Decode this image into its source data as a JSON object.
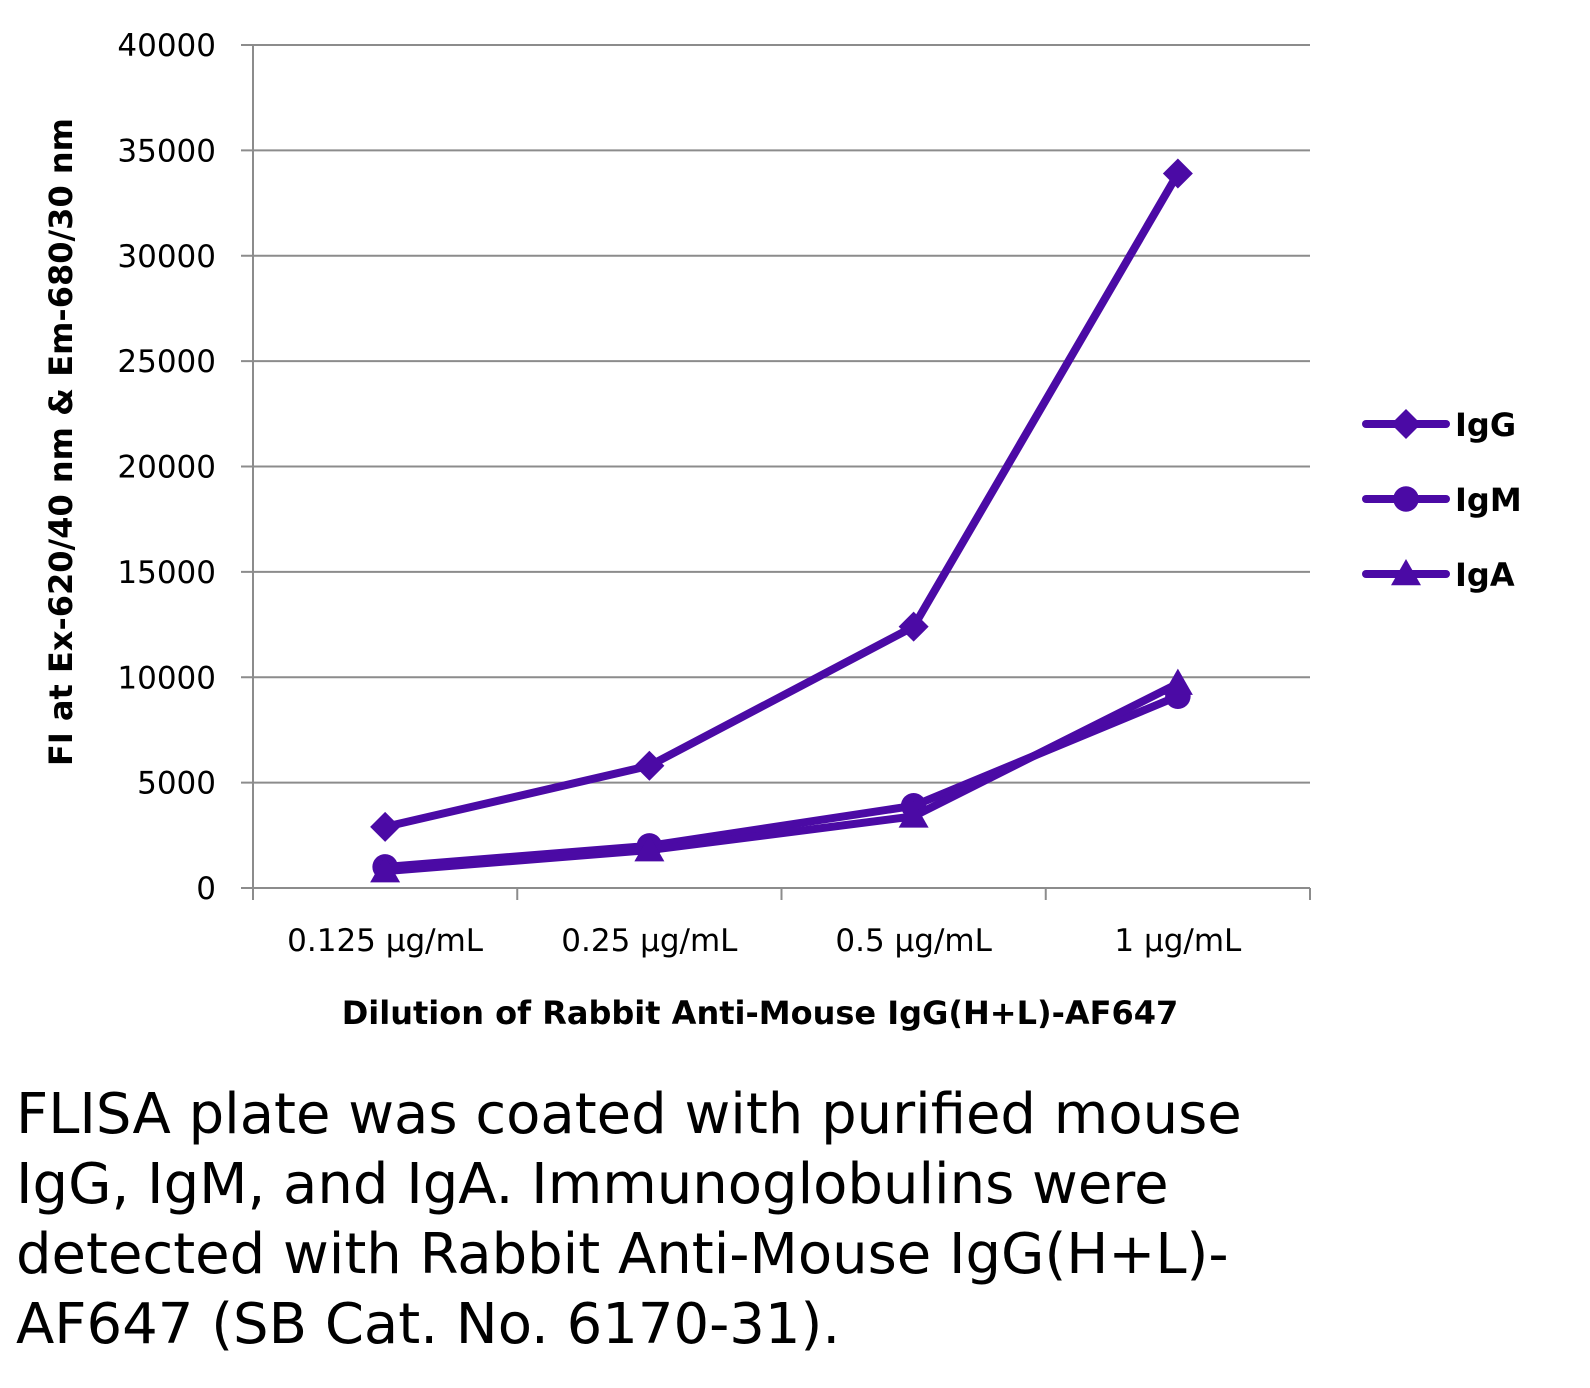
{
  "chart_data": {
    "type": "line",
    "xlabel": "Dilution of Rabbit Anti-Mouse IgG(H+L)-AF647",
    "ylabel": "FI at Ex-620/40 nm & Em-680/30 nm",
    "categories": [
      "0.125 µg/mL",
      "0.25 µg/mL",
      "0.5 µg/mL",
      "1 µg/mL"
    ],
    "ylim": [
      0,
      40000
    ],
    "yticks": [
      0,
      5000,
      10000,
      15000,
      20000,
      25000,
      30000,
      35000,
      40000
    ],
    "grid": true,
    "legend_position": "right",
    "series": [
      {
        "name": "IgG",
        "marker": "diamond",
        "values": [
          2900,
          5800,
          12400,
          33900
        ]
      },
      {
        "name": "IgM",
        "marker": "circle",
        "values": [
          1000,
          2000,
          3900,
          9100
        ]
      },
      {
        "name": "IgA",
        "marker": "triangle",
        "values": [
          800,
          1800,
          3400,
          9700
        ]
      }
    ],
    "colors": {
      "series": "#4B0AA5",
      "grid": "#8c8c8c",
      "axis": "#8c8c8c"
    }
  },
  "caption": "FLISA plate was coated with purified mouse IgG, IgM, and IgA.  Immunoglobulins were detected with Rabbit Anti-Mouse IgG(H+L)-AF647 (SB Cat. No. 6170-31)."
}
